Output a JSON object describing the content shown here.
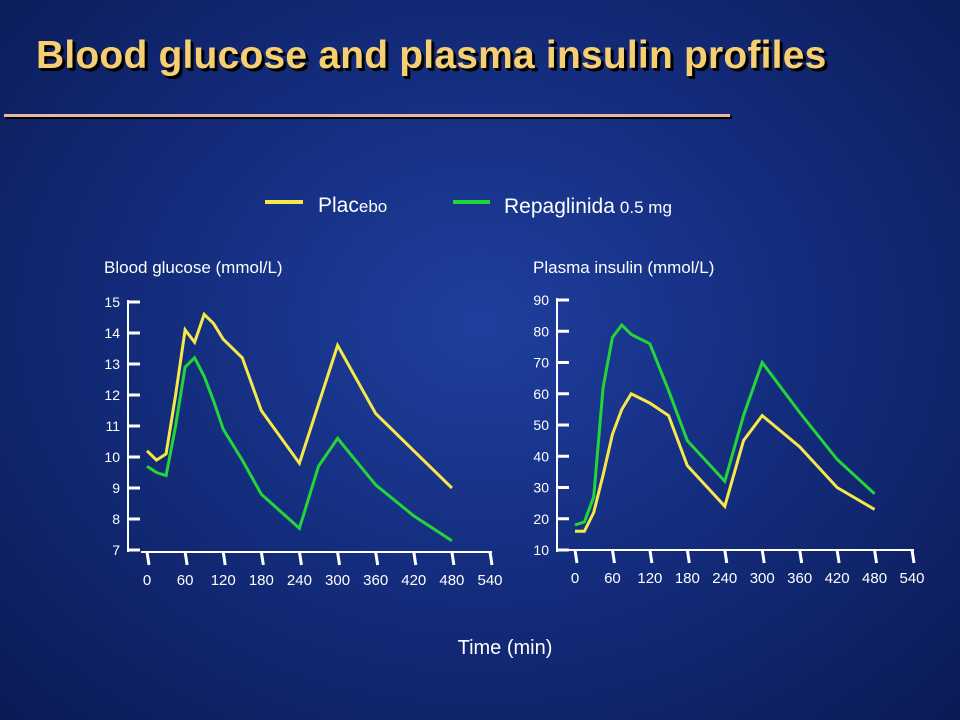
{
  "title": "Blood glucose and plasma  insulin profiles",
  "legend": {
    "placebo_main": "Plac",
    "placebo_suffix": "ebo",
    "repaglinide_main": "Repaglinida",
    "repaglinide_suffix": "0.5 mg"
  },
  "x_axis_label": "Time (min)",
  "colors": {
    "placebo": "#f5e94a",
    "repaglinide": "#22d63a",
    "text": "#ffffff",
    "title": "#f6cf73"
  },
  "chart_data": [
    {
      "type": "line",
      "title": "Blood glucose (mmol/L)",
      "xlabel": "Time (min)",
      "ylabel": "",
      "ylim": [
        7,
        15
      ],
      "y_ticks": [
        7,
        8,
        9,
        10,
        11,
        12,
        13,
        14,
        15
      ],
      "x_ticks": [
        0,
        60,
        120,
        180,
        240,
        300,
        360,
        420,
        480,
        540
      ],
      "xlim": [
        0,
        540
      ],
      "series": [
        {
          "name": "Placebo",
          "color": "#f5e94a",
          "x": [
            0,
            15,
            30,
            45,
            60,
            75,
            90,
            105,
            120,
            150,
            180,
            240,
            270,
            300,
            360,
            420,
            480
          ],
          "y": [
            10.2,
            9.9,
            10.1,
            12.0,
            14.1,
            13.7,
            14.6,
            14.3,
            13.8,
            13.2,
            11.5,
            9.8,
            11.7,
            13.6,
            11.4,
            10.2,
            9.0
          ]
        },
        {
          "name": "Repaglinida 0.5 mg",
          "color": "#22d63a",
          "x": [
            0,
            15,
            30,
            45,
            60,
            75,
            90,
            105,
            120,
            150,
            180,
            240,
            270,
            300,
            360,
            420,
            480
          ],
          "y": [
            9.7,
            9.5,
            9.4,
            11.0,
            12.9,
            13.2,
            12.6,
            11.8,
            10.9,
            9.9,
            8.8,
            7.7,
            9.7,
            10.6,
            9.1,
            8.1,
            7.3
          ]
        }
      ]
    },
    {
      "type": "line",
      "title": "Plasma insulin (mmol/L)",
      "xlabel": "Time (min)",
      "ylabel": "",
      "ylim": [
        10,
        90
      ],
      "y_ticks": [
        10,
        20,
        30,
        40,
        50,
        60,
        70,
        80,
        90
      ],
      "x_ticks": [
        0,
        60,
        120,
        180,
        240,
        300,
        360,
        420,
        480,
        540
      ],
      "xlim": [
        0,
        540
      ],
      "series": [
        {
          "name": "Placebo",
          "color": "#f5e94a",
          "x": [
            0,
            15,
            30,
            45,
            60,
            75,
            90,
            120,
            150,
            180,
            240,
            270,
            300,
            360,
            420,
            480
          ],
          "y": [
            16,
            16,
            22,
            34,
            47,
            55,
            60,
            57,
            53,
            37,
            24,
            45,
            53,
            43,
            30,
            23
          ]
        },
        {
          "name": "Repaglinida 0.5 mg",
          "color": "#22d63a",
          "x": [
            0,
            15,
            30,
            45,
            60,
            75,
            90,
            120,
            150,
            180,
            240,
            270,
            300,
            360,
            420,
            480
          ],
          "y": [
            18,
            19,
            27,
            62,
            78,
            82,
            79,
            76,
            61,
            45,
            32,
            53,
            70,
            54,
            39,
            28
          ]
        }
      ]
    }
  ]
}
